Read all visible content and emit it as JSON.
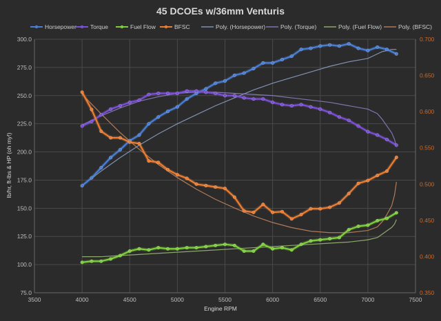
{
  "chart_data": {
    "type": "line",
    "title": "45 DCOEs w/36mm Venturis",
    "xlabel": "Engine RPM",
    "ylabel": "lb/hr,  ft-lbs  &  HP  (oh my!)",
    "xlim": [
      3500,
      7500
    ],
    "ylim": [
      75,
      300
    ],
    "y2lim": [
      0.35,
      0.7
    ],
    "x_ticks": [
      "3500",
      "4000",
      "4500",
      "5000",
      "5500",
      "6000",
      "6500",
      "7000",
      "7500"
    ],
    "y_ticks": [
      "75.0",
      "100.0",
      "125.0",
      "150.0",
      "175.0",
      "200.0",
      "225.0",
      "250.0",
      "275.0",
      "300.0"
    ],
    "y2_ticks": [
      "0.350",
      "0.400",
      "0.450",
      "0.500",
      "0.550",
      "0.600",
      "0.650",
      "0.700"
    ],
    "x": [
      4000,
      4100,
      4200,
      4300,
      4400,
      4500,
      4600,
      4700,
      4800,
      4900,
      5000,
      5100,
      5200,
      5300,
      5400,
      5500,
      5600,
      5700,
      5800,
      5900,
      6000,
      6100,
      6200,
      6300,
      6400,
      6500,
      6600,
      6700,
      6800,
      6900,
      7000,
      7100,
      7200,
      7300
    ],
    "series": [
      {
        "name": "Horsepower",
        "axis": "left",
        "color": "#4a7fd8",
        "values": [
          170,
          177,
          186,
          195,
          202,
          210,
          215,
          225,
          231,
          236,
          240,
          247,
          252,
          256,
          261,
          263,
          268,
          270,
          274,
          279,
          279,
          282,
          285,
          291,
          292,
          294,
          295,
          294,
          296,
          292,
          290,
          293,
          291,
          287
        ]
      },
      {
        "name": "Torque",
        "axis": "left",
        "color": "#7b4fd8",
        "values": [
          223,
          227,
          233,
          238,
          241,
          244,
          246,
          251,
          252,
          252,
          252,
          254,
          254,
          253,
          252,
          250,
          250,
          248,
          247,
          247,
          244,
          242,
          241,
          242,
          240,
          238,
          235,
          231,
          228,
          223,
          218,
          215,
          211,
          206
        ]
      },
      {
        "name": "Fuel Flow",
        "axis": "left",
        "color": "#7fd13b",
        "values": [
          102,
          103,
          103,
          105,
          108,
          112,
          114,
          113,
          115,
          114,
          114,
          115,
          115,
          116,
          117,
          118,
          117,
          112,
          112,
          118,
          114,
          115,
          113,
          118,
          121,
          122,
          123,
          124,
          131,
          134,
          135,
          139,
          141,
          146
        ]
      },
      {
        "name": "BFSC",
        "axis": "right",
        "color": "#ed7d31",
        "values": [
          0.627,
          0.603,
          0.573,
          0.564,
          0.564,
          0.558,
          0.556,
          0.532,
          0.53,
          0.52,
          0.513,
          0.508,
          0.5,
          0.498,
          0.496,
          0.494,
          0.482,
          0.463,
          0.461,
          0.472,
          0.461,
          0.462,
          0.452,
          0.458,
          0.466,
          0.466,
          0.468,
          0.474,
          0.487,
          0.501,
          0.505,
          0.512,
          0.518,
          0.537
        ]
      }
    ],
    "trendlines": [
      {
        "name": "Poly. (Horsepower)",
        "axis": "left",
        "color": "#8fa6c8",
        "values": [
          170,
          183,
          195,
          206,
          216,
          225,
          233,
          241,
          248,
          255,
          261,
          266,
          271,
          276,
          280,
          283,
          287,
          289,
          290,
          291,
          291,
          291
        ]
      },
      {
        "name": "Poly. (Torque)",
        "axis": "left",
        "color": "#8f84c8",
        "values": [
          224,
          232,
          239,
          245,
          249,
          252,
          253,
          253,
          252,
          251,
          250,
          248,
          246,
          244,
          241,
          238,
          234,
          229,
          223,
          217,
          211,
          205
        ]
      },
      {
        "name": "Poly. (Fuel Flow)",
        "axis": "left",
        "color": "#9fc07a",
        "values": [
          107,
          107,
          108,
          109,
          110,
          111,
          112,
          113,
          114,
          115,
          116,
          117,
          118,
          119,
          120,
          122,
          124,
          127,
          130,
          133,
          136,
          140
        ]
      },
      {
        "name": "Poly. (BFSC)",
        "axis": "right",
        "color": "#c98a62",
        "values": [
          0.624,
          0.597,
          0.571,
          0.548,
          0.527,
          0.509,
          0.493,
          0.479,
          0.467,
          0.456,
          0.447,
          0.44,
          0.435,
          0.433,
          0.433,
          0.436,
          0.441,
          0.448,
          0.458,
          0.47,
          0.485,
          0.503
        ]
      }
    ],
    "trend_x": [
      4000,
      4200,
      4400,
      4600,
      4800,
      5000,
      5200,
      5400,
      5600,
      5800,
      6000,
      6200,
      6400,
      6600,
      6800,
      7000,
      7100,
      7150,
      7200,
      7250,
      7280,
      7300
    ],
    "legend": [
      "Horsepower",
      "Torque",
      "Fuel Flow",
      "BFSC",
      "Poly. (Horsepower)",
      "Poly. (Torque)",
      "Poly. (Fuel Flow)",
      "Poly. (BFSC)"
    ],
    "legend_position": "top",
    "grid": true
  }
}
